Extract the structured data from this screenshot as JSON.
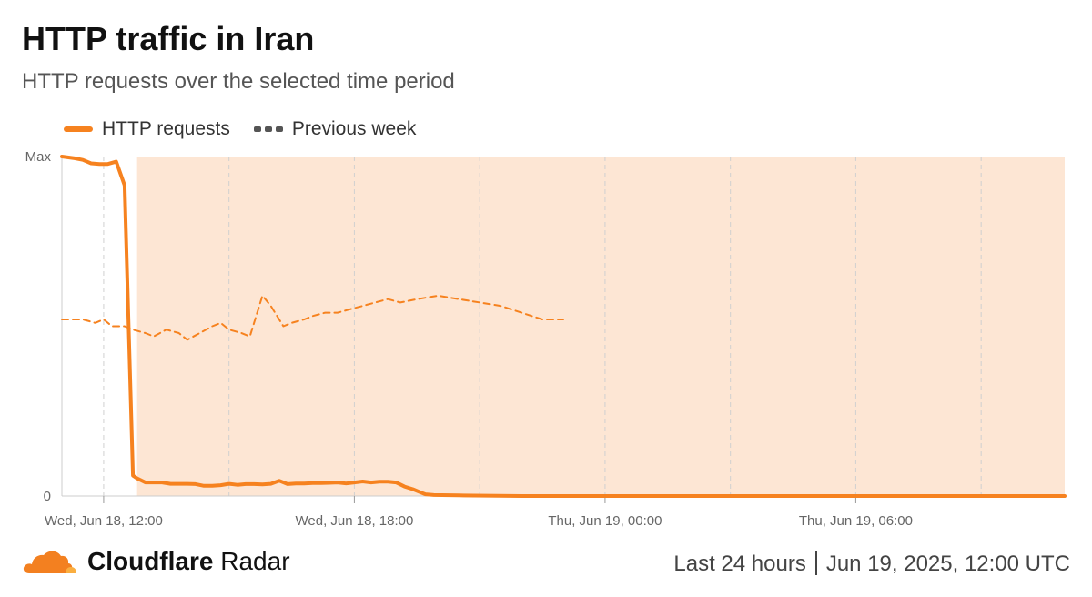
{
  "header": {
    "title": "HTTP traffic in Iran",
    "subtitle": "HTTP requests over the selected time period"
  },
  "legend": {
    "series_label": "HTTP requests",
    "previous_label": "Previous week"
  },
  "footer": {
    "brand_bold": "Cloudflare",
    "brand_regular": "Radar",
    "period": "Last 24 hours",
    "date": "Jun 19, 2025, 12:00 UTC"
  },
  "colors": {
    "series": "#f6821f",
    "highlight": "#fde6d4",
    "grid": "#d0d0d0",
    "legend_dash": "#555555",
    "logo_orange": "#f38020",
    "logo_light": "#faae40"
  },
  "icons": {
    "logo": "cloudflare-cloud-icon"
  },
  "chart_data": {
    "type": "line",
    "y_tick_labels": [
      "Max",
      "0"
    ],
    "x_tick_labels": [
      "Wed, Jun 18, 12:00",
      "Wed, Jun 18, 18:00",
      "Thu, Jun 19, 00:00",
      "Thu, Jun 19, 06:00"
    ],
    "ylim": [
      0,
      1
    ],
    "grid": true,
    "legend_position": "top-left",
    "x_hours": [
      -1,
      11
    ],
    "highlight_range_hours": [
      0.8,
      23
    ],
    "series": [
      {
        "name": "HTTP requests",
        "style": "solid",
        "x": [
          -1,
          -0.7,
          -0.5,
          -0.3,
          -0.1,
          0.1,
          0.3,
          0.5,
          0.7,
          0.8,
          1.0,
          1.2,
          1.4,
          1.6,
          1.8,
          2.0,
          2.2,
          2.4,
          2.6,
          2.8,
          3.0,
          3.2,
          3.4,
          3.6,
          3.8,
          4.0,
          4.2,
          4.4,
          4.6,
          4.8,
          5.0,
          5.2,
          5.4,
          5.6,
          5.8,
          6.0,
          6.2,
          6.4,
          6.6,
          6.8,
          7.0,
          7.2,
          7.4,
          7.6,
          7.7,
          7.9,
          8.5,
          10,
          12,
          14,
          16,
          18,
          20,
          22,
          23
        ],
        "y": [
          1.0,
          0.995,
          0.99,
          0.98,
          0.978,
          0.978,
          0.985,
          0.915,
          0.06,
          0.052,
          0.04,
          0.04,
          0.04,
          0.036,
          0.036,
          0.036,
          0.035,
          0.03,
          0.03,
          0.032,
          0.036,
          0.033,
          0.035,
          0.035,
          0.034,
          0.036,
          0.045,
          0.035,
          0.037,
          0.037,
          0.038,
          0.038,
          0.039,
          0.04,
          0.037,
          0.04,
          0.043,
          0.04,
          0.042,
          0.042,
          0.04,
          0.028,
          0.02,
          0.01,
          0.005,
          0.003,
          0.002,
          0.0,
          0.0,
          0.0,
          0.0,
          0.0,
          0.0,
          0.0,
          0.0
        ]
      },
      {
        "name": "Previous week",
        "style": "dashed",
        "x": [
          -1,
          -0.5,
          -0.2,
          0,
          0.2,
          0.5,
          0.7,
          1.0,
          1.2,
          1.5,
          1.8,
          2.0,
          2.3,
          2.6,
          2.8,
          3.0,
          3.3,
          3.5,
          3.8,
          4.0,
          4.3,
          4.5,
          4.8,
          5.0,
          5.3,
          5.6,
          5.9,
          6.2,
          6.5,
          6.8,
          7.1,
          7.5,
          8,
          8.5,
          9,
          9.5,
          10,
          10.5,
          11
        ],
        "y": [
          0.52,
          0.52,
          0.51,
          0.52,
          0.5,
          0.5,
          0.49,
          0.48,
          0.47,
          0.49,
          0.48,
          0.46,
          0.48,
          0.5,
          0.51,
          0.49,
          0.48,
          0.47,
          0.59,
          0.56,
          0.5,
          0.51,
          0.52,
          0.53,
          0.54,
          0.54,
          0.55,
          0.56,
          0.57,
          0.58,
          0.57,
          0.58,
          0.59,
          0.58,
          0.57,
          0.56,
          0.54,
          0.52,
          0.52
        ]
      }
    ]
  }
}
